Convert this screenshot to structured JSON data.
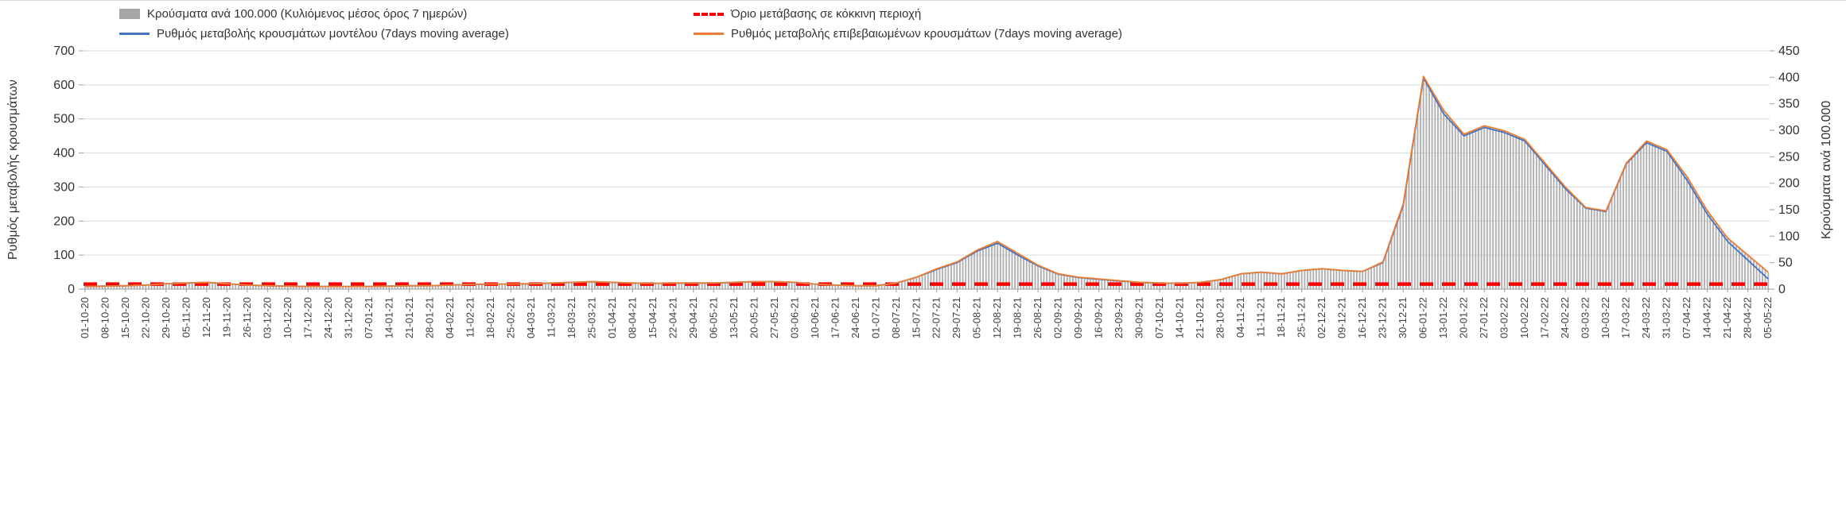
{
  "legend": {
    "items": [
      {
        "label": "Κρούσματα ανά 100.000 (Κυλιόμενος μέσος όρος 7 ημερών)",
        "color": "#A6A6A6",
        "swatch": "bar"
      },
      {
        "label": "Όριο μετάβασης σε κόκκινη περιοχή",
        "color": "#FF0000",
        "swatch": "dash"
      },
      {
        "label": "Ρυθμός μεταβολής κρουσμάτων μοντέλου (7days moving average)",
        "color": "#4472C4",
        "swatch": "line"
      },
      {
        "label": "Ρυθμός μεταβολής επιβεβαιωμένων κρουσμάτων (7days moving average)",
        "color": "#ED7D31",
        "swatch": "line"
      }
    ]
  },
  "axes": {
    "y_left": {
      "title": "Ρυθμός μεταβολής κρουσμάτων",
      "min": 0,
      "max": 700,
      "step": 100
    },
    "y_right": {
      "title": "Κρούσματα ανά 100.000",
      "min": 0,
      "max": 450,
      "step": 50
    }
  },
  "chart_data": {
    "type": "bar",
    "note_types": "combo: bars (right axis) + 2 lines (left axis) + dashed threshold",
    "x": [
      "01-10-20",
      "08-10-20",
      "15-10-20",
      "22-10-20",
      "29-10-20",
      "05-11-20",
      "12-11-20",
      "19-11-20",
      "26-11-20",
      "03-12-20",
      "10-12-20",
      "17-12-20",
      "24-12-20",
      "31-12-20",
      "07-01-21",
      "14-01-21",
      "21-01-21",
      "28-01-21",
      "04-02-21",
      "11-02-21",
      "18-02-21",
      "25-02-21",
      "04-03-21",
      "11-03-21",
      "18-03-21",
      "25-03-21",
      "01-04-21",
      "08-04-21",
      "15-04-21",
      "22-04-21",
      "29-04-21",
      "06-05-21",
      "13-05-21",
      "20-05-21",
      "27-05-21",
      "03-06-21",
      "10-06-21",
      "17-06-21",
      "24-06-21",
      "01-07-21",
      "08-07-21",
      "15-07-21",
      "22-07-21",
      "29-07-21",
      "05-08-21",
      "12-08-21",
      "19-08-21",
      "26-08-21",
      "02-09-21",
      "09-09-21",
      "16-09-21",
      "23-09-21",
      "30-09-21",
      "07-10-21",
      "14-10-21",
      "21-10-21",
      "28-10-21",
      "04-11-21",
      "11-11-21",
      "18-11-21",
      "25-11-21",
      "02-12-21",
      "09-12-21",
      "16-12-21",
      "23-12-21",
      "30-12-21",
      "06-01-22",
      "13-01-22",
      "20-01-22",
      "27-01-22",
      "03-02-22",
      "10-02-22",
      "17-02-22",
      "24-02-22",
      "03-03-22",
      "10-03-22",
      "17-03-22",
      "24-03-22",
      "31-03-22",
      "07-04-22",
      "14-04-22",
      "21-04-22",
      "28-04-22",
      "05-05-22"
    ],
    "series": [
      {
        "name": "Κρούσματα ανά 100.000 (Κυλιόμενος μέσος όρος 7 ημερών)",
        "kind": "bar",
        "axis": "right",
        "color": "#A6A6A6",
        "values": [
          5,
          6,
          6,
          8,
          10,
          12,
          13,
          10,
          8,
          6,
          6,
          5,
          5,
          5,
          5,
          6,
          6,
          6,
          8,
          9,
          10,
          10,
          10,
          12,
          13,
          14,
          13,
          12,
          11,
          12,
          12,
          12,
          13,
          14,
          14,
          13,
          10,
          8,
          6,
          6,
          12,
          22,
          39,
          51,
          74,
          90,
          68,
          45,
          29,
          22,
          19,
          16,
          13,
          12,
          11,
          13,
          18,
          29,
          32,
          29,
          35,
          39,
          35,
          33,
          51,
          161,
          402,
          338,
          293,
          309,
          299,
          283,
          238,
          193,
          154,
          148,
          238,
          280,
          264,
          212,
          148,
          96,
          64,
          32
        ]
      },
      {
        "name": "Ρυθμός μεταβολής κρουσμάτων μοντέλου (7days moving average)",
        "kind": "line",
        "axis": "left",
        "color": "#4472C4",
        "values": [
          8,
          9,
          10,
          12,
          16,
          18,
          20,
          16,
          12,
          10,
          9,
          8,
          8,
          8,
          8,
          9,
          10,
          10,
          12,
          14,
          15,
          15,
          16,
          18,
          20,
          22,
          20,
          18,
          17,
          18,
          18,
          18,
          20,
          22,
          22,
          20,
          15,
          12,
          10,
          10,
          18,
          35,
          58,
          78,
          112,
          135,
          100,
          68,
          44,
          34,
          29,
          24,
          20,
          18,
          17,
          20,
          28,
          45,
          50,
          45,
          55,
          60,
          55,
          52,
          78,
          245,
          620,
          515,
          450,
          475,
          460,
          435,
          365,
          295,
          238,
          228,
          368,
          430,
          405,
          320,
          220,
          140,
          85,
          30
        ]
      },
      {
        "name": "Ρυθμός μεταβολής επιβεβαιωμένων κρουσμάτων (7days moving average)",
        "kind": "line",
        "axis": "left",
        "color": "#ED7D31",
        "values": [
          8,
          9,
          10,
          12,
          16,
          18,
          20,
          16,
          12,
          10,
          9,
          8,
          8,
          8,
          8,
          9,
          10,
          10,
          12,
          14,
          15,
          15,
          16,
          18,
          20,
          22,
          20,
          18,
          17,
          18,
          18,
          18,
          20,
          22,
          22,
          20,
          15,
          12,
          10,
          10,
          18,
          35,
          60,
          80,
          115,
          140,
          105,
          70,
          45,
          35,
          30,
          25,
          20,
          18,
          17,
          20,
          28,
          45,
          50,
          45,
          55,
          60,
          55,
          52,
          80,
          250,
          625,
          525,
          455,
          480,
          465,
          440,
          370,
          300,
          240,
          230,
          370,
          435,
          410,
          330,
          230,
          150,
          100,
          50
        ]
      }
    ],
    "threshold": {
      "name": "Όριο μετάβασης σε κόκκινη περιοχή",
      "axis": "left",
      "value": 15,
      "color": "#FF0000",
      "style": "dashed"
    },
    "layout": {
      "grid": "horizontal",
      "legend_position": "top",
      "x_labels": "rotated 90, weekly",
      "bars_resolution": "daily (interpolated between weekly anchors)"
    }
  }
}
